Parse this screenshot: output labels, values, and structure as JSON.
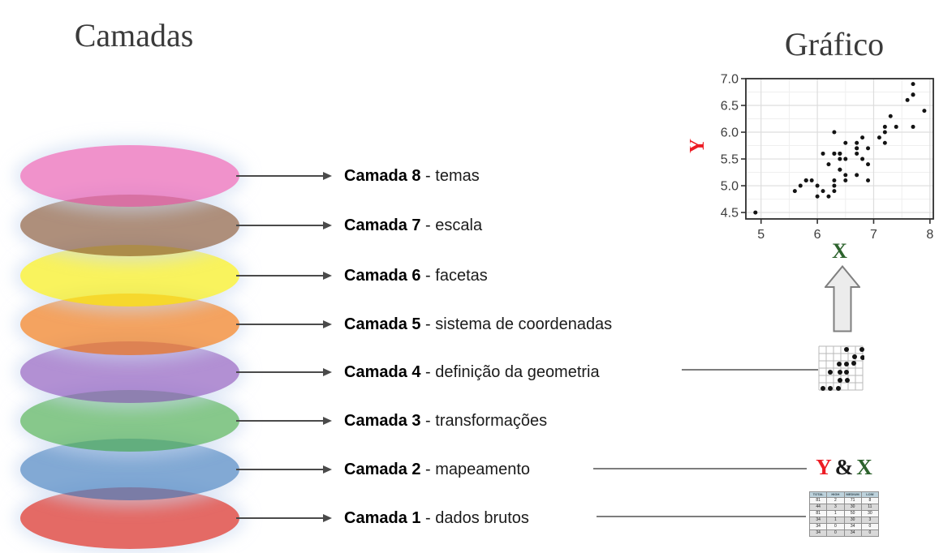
{
  "left_panel": {
    "title": "Camadas",
    "separator": " - ",
    "layers": [
      {
        "label": "Camada 8",
        "desc": "temas",
        "color": "#ea64b5"
      },
      {
        "label": "Camada 7",
        "desc": "escala",
        "color": "#8c5f43"
      },
      {
        "label": "Camada 6",
        "desc": "facetas",
        "color": "#f7ee18"
      },
      {
        "label": "Camada 5",
        "desc": "sistema de coordenadas",
        "color": "#f07c1d"
      },
      {
        "label": "Camada 4",
        "desc": "definição da geometria",
        "color": "#9161c1"
      },
      {
        "label": "Camada 3",
        "desc": "transformações",
        "color": "#54b05a"
      },
      {
        "label": "Camada 2",
        "desc": "mapeamento",
        "color": "#4d84c2"
      },
      {
        "label": "Camada 1",
        "desc": "dados brutos",
        "color": "#d92b24"
      }
    ]
  },
  "right_panel": {
    "title": "Gráfico",
    "mapping_text": {
      "y": "Y",
      "amp": "&",
      "x": "X",
      "y_color": "#ed1c24",
      "x_color": "#2d632d"
    }
  },
  "chart_data": {
    "type": "scatter",
    "title": "Gráfico",
    "xlabel": "X",
    "ylabel": "Y",
    "xlabel_color": "#2d632d",
    "ylabel_color": "#ed1c24",
    "xlim": [
      4.73,
      8.06
    ],
    "ylim": [
      4.38,
      7.0
    ],
    "x_ticks": [
      "5",
      "6",
      "7",
      "8"
    ],
    "y_ticks": [
      "4.5",
      "5.0",
      "5.5",
      "6.0",
      "6.5",
      "7.0"
    ],
    "x_minor_gridlines": [
      5.5,
      6.5,
      7.5
    ],
    "y_minor_gridlines": [
      4.75,
      5.25,
      5.75,
      6.25,
      6.75
    ],
    "grid": true,
    "legend": false,
    "point_color": "#141414",
    "points": [
      [
        6.3,
        6.0
      ],
      [
        5.8,
        5.1
      ],
      [
        7.1,
        5.9
      ],
      [
        6.3,
        5.6
      ],
      [
        6.5,
        5.8
      ],
      [
        7.6,
        6.6
      ],
      [
        4.9,
        4.5
      ],
      [
        7.3,
        6.3
      ],
      [
        6.7,
        5.8
      ],
      [
        7.2,
        6.1
      ],
      [
        6.5,
        5.1
      ],
      [
        6.4,
        5.3
      ],
      [
        6.8,
        5.5
      ],
      [
        5.7,
        5.0
      ],
      [
        5.8,
        5.1
      ],
      [
        6.4,
        5.3
      ],
      [
        6.5,
        5.5
      ],
      [
        7.7,
        6.7
      ],
      [
        7.7,
        6.9
      ],
      [
        6.0,
        5.0
      ],
      [
        6.9,
        5.7
      ],
      [
        5.6,
        4.9
      ],
      [
        7.7,
        6.7
      ],
      [
        6.3,
        4.9
      ],
      [
        6.7,
        5.7
      ],
      [
        7.2,
        6.0
      ],
      [
        6.2,
        4.8
      ],
      [
        6.1,
        4.9
      ],
      [
        6.4,
        5.6
      ],
      [
        7.2,
        5.8
      ],
      [
        7.4,
        6.1
      ],
      [
        7.9,
        6.4
      ],
      [
        6.4,
        5.6
      ],
      [
        6.3,
        5.1
      ],
      [
        6.1,
        5.6
      ],
      [
        7.7,
        6.1
      ],
      [
        6.3,
        5.6
      ],
      [
        6.4,
        5.5
      ],
      [
        6.0,
        4.8
      ],
      [
        6.9,
        5.4
      ],
      [
        6.7,
        5.6
      ],
      [
        6.9,
        5.1
      ],
      [
        5.8,
        5.1
      ],
      [
        6.8,
        5.9
      ],
      [
        6.7,
        5.7
      ],
      [
        6.7,
        5.2
      ],
      [
        6.3,
        5.0
      ],
      [
        6.5,
        5.2
      ],
      [
        6.2,
        5.4
      ],
      [
        5.9,
        5.1
      ]
    ]
  },
  "geom_icon": {
    "dots": [
      [
        34,
        4
      ],
      [
        53,
        4
      ],
      [
        44,
        13
      ],
      [
        54,
        14
      ],
      [
        25,
        22
      ],
      [
        34,
        22
      ],
      [
        43,
        21
      ],
      [
        14,
        32
      ],
      [
        26,
        32
      ],
      [
        34,
        32
      ],
      [
        26,
        42
      ],
      [
        35,
        42
      ],
      [
        5,
        52
      ],
      [
        14,
        52
      ],
      [
        24,
        52
      ]
    ]
  },
  "mini_table": {
    "headers": [
      "TOTAL",
      "HIGH",
      "MEDIUM",
      "LOW"
    ],
    "rows": [
      [
        "81",
        "2",
        "71",
        "8"
      ],
      [
        "44",
        "3",
        "30",
        "11"
      ],
      [
        "81",
        "1",
        "50",
        "30"
      ],
      [
        "34",
        "1",
        "30",
        "3"
      ],
      [
        "34",
        "0",
        "34",
        "0"
      ],
      [
        "34",
        "0",
        "34",
        "0"
      ]
    ]
  }
}
